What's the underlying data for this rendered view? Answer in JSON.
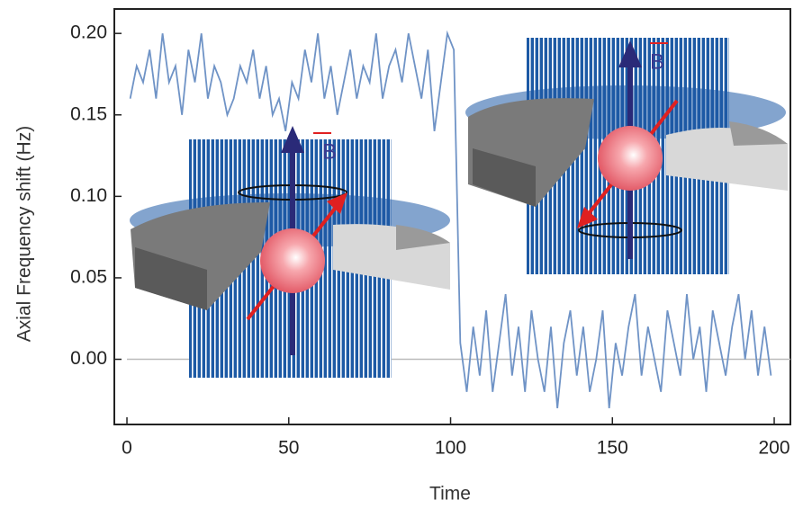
{
  "chart_data": {
    "type": "line",
    "x_label": "Time",
    "y_label": "Axial Frequency shift (Hz)",
    "annotations": [
      "B",
      "B"
    ],
    "color": "#6f93c6",
    "zero_line": true,
    "xlim": [
      -3.9,
      205
    ],
    "ylim": [
      -0.04,
      0.215
    ],
    "xticks": [
      0,
      50,
      100,
      150,
      200
    ],
    "yticks": [
      {
        "value": 0.0,
        "label": "0.00"
      },
      {
        "value": 0.05,
        "label": "0.05"
      },
      {
        "value": 0.1,
        "label": "0.10"
      },
      {
        "value": 0.15,
        "label": "0.15"
      },
      {
        "value": 0.2,
        "label": "0.20"
      }
    ],
    "x": [
      1,
      3,
      5,
      7,
      9,
      11,
      13,
      15,
      17,
      19,
      21,
      23,
      25,
      27,
      29,
      31,
      33,
      35,
      37,
      39,
      41,
      43,
      45,
      47,
      49,
      51,
      53,
      55,
      57,
      59,
      61,
      63,
      65,
      67,
      69,
      71,
      73,
      75,
      77,
      79,
      81,
      83,
      85,
      87,
      89,
      91,
      93,
      95,
      97,
      99,
      101,
      103,
      105,
      107,
      109,
      111,
      113,
      115,
      117,
      119,
      121,
      123,
      125,
      127,
      129,
      131,
      133,
      135,
      137,
      139,
      141,
      143,
      145,
      147,
      149,
      151,
      153,
      155,
      157,
      159,
      161,
      163,
      165,
      167,
      169,
      171,
      173,
      175,
      177,
      179,
      181,
      183,
      185,
      187,
      189,
      191,
      193,
      195,
      197,
      199
    ],
    "values": [
      0.16,
      0.18,
      0.17,
      0.19,
      0.16,
      0.2,
      0.17,
      0.18,
      0.15,
      0.19,
      0.17,
      0.2,
      0.16,
      0.18,
      0.17,
      0.15,
      0.16,
      0.18,
      0.17,
      0.19,
      0.16,
      0.18,
      0.15,
      0.16,
      0.14,
      0.17,
      0.16,
      0.19,
      0.17,
      0.2,
      0.16,
      0.18,
      0.15,
      0.17,
      0.19,
      0.16,
      0.18,
      0.17,
      0.2,
      0.16,
      0.18,
      0.19,
      0.17,
      0.2,
      0.18,
      0.16,
      0.19,
      0.14,
      0.17,
      0.2,
      0.19,
      0.01,
      -0.02,
      0.02,
      -0.01,
      0.03,
      -0.02,
      0.01,
      0.04,
      -0.01,
      0.02,
      -0.02,
      0.03,
      0.0,
      -0.02,
      0.02,
      -0.03,
      0.01,
      0.03,
      -0.01,
      0.02,
      -0.02,
      0.0,
      0.03,
      -0.03,
      0.01,
      -0.01,
      0.02,
      0.04,
      -0.01,
      0.02,
      0.0,
      -0.02,
      0.03,
      0.01,
      -0.01,
      0.04,
      0.0,
      0.02,
      -0.02,
      0.03,
      0.01,
      -0.01,
      0.02,
      0.04,
      0.0,
      0.03,
      -0.01,
      0.02,
      -0.01
    ]
  }
}
